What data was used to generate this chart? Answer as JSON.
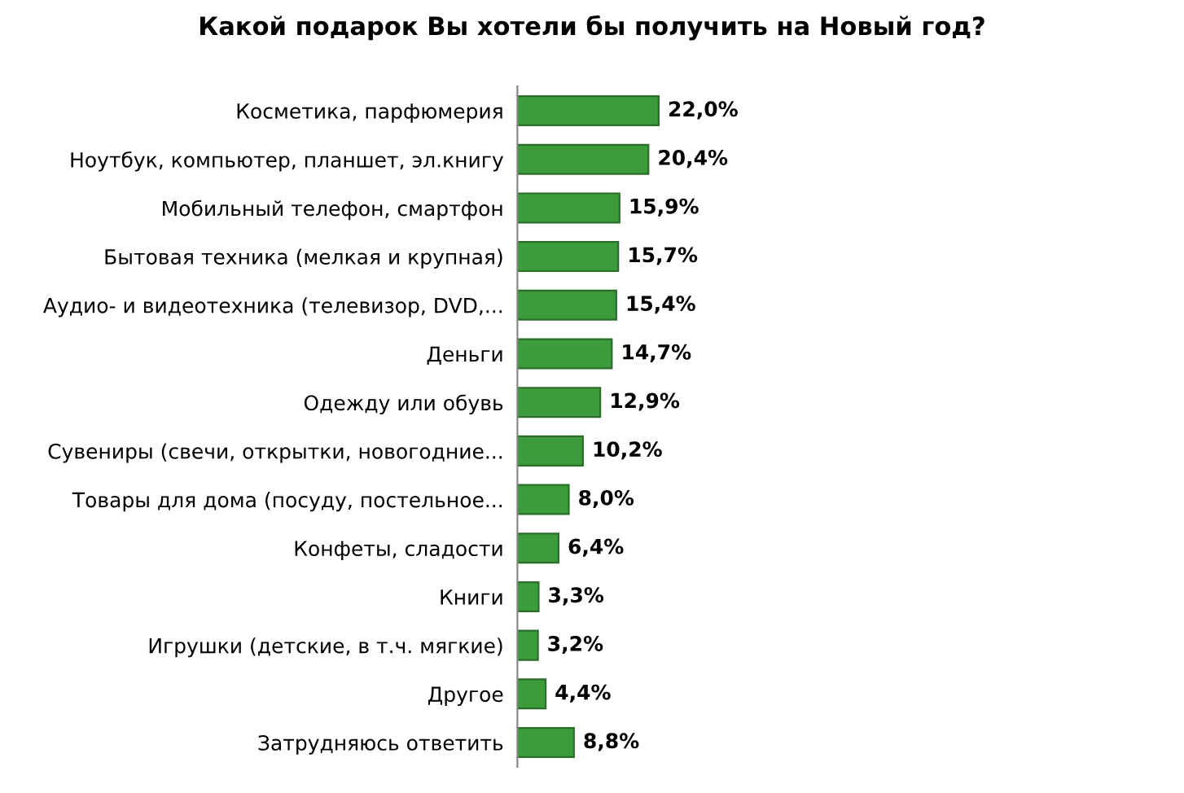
{
  "chart_data": {
    "type": "bar",
    "orientation": "horizontal",
    "title": "Какой подарок Вы хотели бы получить на Новый год?",
    "categories": [
      "Косметика, парфюмерия",
      "Ноутбук, компьютер, планшет, эл.книгу",
      "Мобильный телефон, смартфон",
      "Бытовая техника (мелкая и крупная)",
      "Аудио- и видеотехника (телевизор, DVD,...",
      "Деньги",
      "Одежду или обувь",
      "Сувениры (свечи, открытки, новогодние...",
      "Товары для дома (посуду, постельное...",
      "Конфеты, сладости",
      "Книги",
      "Игрушки (детские, в т.ч. мягкие)",
      "Другое",
      "Затрудняюсь ответить"
    ],
    "values": [
      22.0,
      20.4,
      15.9,
      15.7,
      15.4,
      14.7,
      12.9,
      10.2,
      8.0,
      6.4,
      3.3,
      3.2,
      4.4,
      8.8
    ],
    "value_labels": [
      "22,0%",
      "20,4%",
      "15,9%",
      "15,7%",
      "15,4%",
      "14,7%",
      "12,9%",
      "10,2%",
      "8,0%",
      "6,4%",
      "3,3%",
      "3,2%",
      "4,4%",
      "8,8%"
    ],
    "color": "#3c9c3c",
    "grid": false,
    "legend": false
  }
}
